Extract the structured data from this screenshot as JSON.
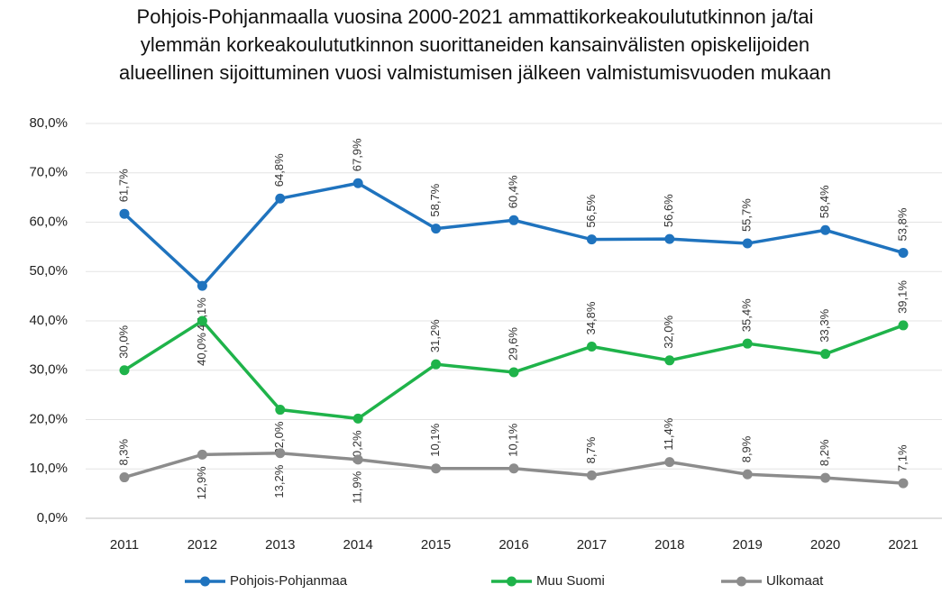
{
  "chart_data": {
    "type": "line",
    "title": [
      "Pohjois-Pohjanmaalla vuosina 2000-2021 ammattikorkeakoulututkinnon ja/tai",
      "ylemmän korkeakoulututkinnon suorittaneiden kansainvälisten opiskelijoiden",
      "alueellinen sijoittuminen vuosi valmistumisen jälkeen valmistumisvuoden mukaan"
    ],
    "categories": [
      "2011",
      "2012",
      "2013",
      "2014",
      "2015",
      "2016",
      "2017",
      "2018",
      "2019",
      "2020",
      "2021"
    ],
    "series": [
      {
        "name": "Pohjois-Pohjanmaa",
        "color": "#1f73be",
        "values": [
          61.7,
          47.1,
          64.8,
          67.9,
          58.7,
          60.4,
          56.5,
          56.6,
          55.7,
          58.4,
          53.8
        ],
        "value_labels": [
          "61,7%",
          "47,1%",
          "64,8%",
          "67,9%",
          "58,7%",
          "60,4%",
          "56,5%",
          "56,6%",
          "55,7%",
          "58,4%",
          "53,8%"
        ]
      },
      {
        "name": "Muu Suomi",
        "color": "#1fb34a",
        "values": [
          30.0,
          40.0,
          22.0,
          20.2,
          31.2,
          29.6,
          34.8,
          32.0,
          35.4,
          33.3,
          39.1
        ],
        "value_labels": [
          "30,0%",
          "40,0%",
          "22,0%",
          "20,2%",
          "31,2%",
          "29,6%",
          "34,8%",
          "32,0%",
          "35,4%",
          "33,3%",
          "39,1%"
        ]
      },
      {
        "name": "Ulkomaat",
        "color": "#8c8c8c",
        "values": [
          8.3,
          12.9,
          13.2,
          11.9,
          10.1,
          10.1,
          8.7,
          11.4,
          8.9,
          8.2,
          7.1
        ],
        "value_labels": [
          "8,3%",
          "12,9%",
          "13,2%",
          "11,9%",
          "10,1%",
          "10,1%",
          "8,7%",
          "11,4%",
          "8,9%",
          "8,2%",
          "7,1%"
        ]
      }
    ],
    "ylim": [
      0,
      80
    ],
    "yticks": [
      {
        "value": 0,
        "label": "0,0%"
      },
      {
        "value": 10,
        "label": "10,0%"
      },
      {
        "value": 20,
        "label": "20,0%"
      },
      {
        "value": 30,
        "label": "30,0%"
      },
      {
        "value": 40,
        "label": "40,0%"
      },
      {
        "value": 50,
        "label": "50,0%"
      },
      {
        "value": 60,
        "label": "60,0%"
      },
      {
        "value": 70,
        "label": "70,0%"
      },
      {
        "value": 80,
        "label": "80,0%"
      }
    ],
    "grid": true,
    "legend": "bottom"
  }
}
